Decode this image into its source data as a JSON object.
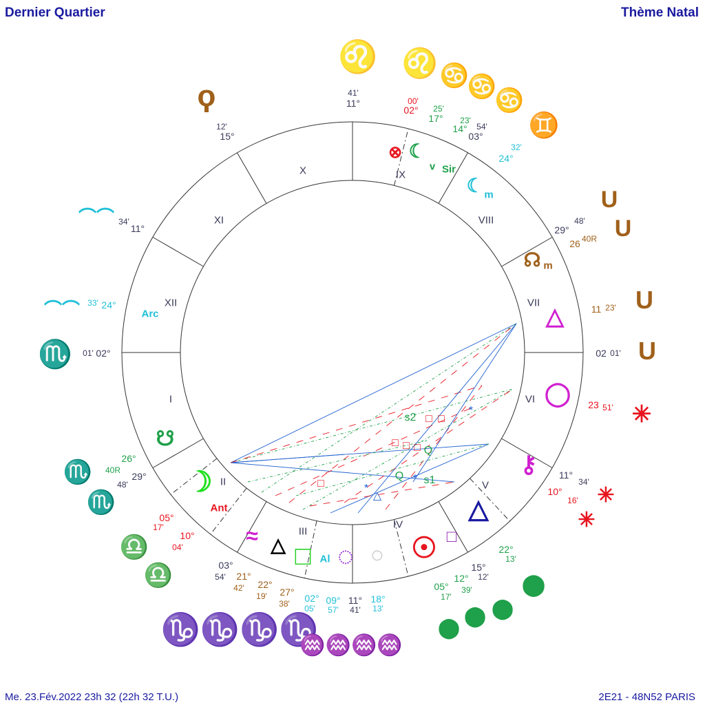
{
  "header": {
    "left": "Dernier Quartier",
    "right": "Thème Natal"
  },
  "footer": {
    "left": "Me. 23.Fév.2022 23h 32 (22h 32 T.U.)",
    "right": "2E21 - 48N52  PARIS"
  },
  "colors": {
    "title": "#1a1aa0",
    "ring": "#333333",
    "red": "#e8141e",
    "green": "#1fa04a",
    "cyan": "#20c0d8",
    "brown": "#a0601a",
    "gray": "#3a3a5a",
    "magenta": "#d020d0",
    "blue": "#2060d0"
  },
  "houses": [
    "X",
    "XI",
    "XII",
    "I",
    "II",
    "III",
    "IV",
    "V",
    "VI",
    "VII",
    "VIII",
    "IX"
  ],
  "degree_labels": [
    {
      "deg": "11°",
      "min": "41'",
      "color": "#3a3a5a"
    },
    {
      "deg": "02°",
      "min": "00'",
      "color": "#e8141e"
    },
    {
      "deg": "17°",
      "min": "25'",
      "color": "#1fa04a"
    },
    {
      "deg": "14°",
      "min": "23'",
      "color": "#1fa04a"
    },
    {
      "deg": "03°",
      "min": "54'",
      "color": "#3a3a5a"
    },
    {
      "deg": "24°",
      "min": "32'",
      "color": "#20c0d8"
    },
    {
      "deg": "15°",
      "min": "12'",
      "color": "#3a3a5a"
    },
    {
      "deg": "11°",
      "min": "34'",
      "color": "#3a3a5a"
    },
    {
      "deg": "24°",
      "min": "33'",
      "color": "#20c0d8"
    },
    {
      "deg": "02°",
      "min": "01'",
      "color": "#3a3a5a"
    },
    {
      "deg": "29°",
      "min": "48'",
      "color": "#3a3a5a"
    },
    {
      "deg": "26",
      "min": "40R",
      "color": "#a0601a"
    },
    {
      "deg": "11",
      "min": "23'",
      "color": "#a0601a"
    },
    {
      "deg": "02",
      "min": "01'",
      "color": "#3a3a5a"
    },
    {
      "deg": "23",
      "min": "51'",
      "color": "#e8141e"
    },
    {
      "deg": "11°",
      "min": "34'",
      "color": "#3a3a5a"
    },
    {
      "deg": "10°",
      "min": "16'",
      "color": "#e8141e"
    },
    {
      "deg": "22°",
      "min": "13'",
      "color": "#1fa04a"
    },
    {
      "deg": "15°",
      "min": "12'",
      "color": "#3a3a5a"
    },
    {
      "deg": "12°",
      "min": "39'",
      "color": "#1fa04a"
    },
    {
      "deg": "05°",
      "min": "17'",
      "color": "#1fa04a"
    },
    {
      "deg": "26°",
      "min": "40R",
      "color": "#1fa04a"
    },
    {
      "deg": "29°",
      "min": "48'",
      "color": "#3a3a5a"
    },
    {
      "deg": "05°",
      "min": "17'",
      "color": "#e8141e"
    },
    {
      "deg": "10°",
      "min": "04'",
      "color": "#e8141e"
    },
    {
      "deg": "03°",
      "min": "54'",
      "color": "#3a3a5a"
    },
    {
      "deg": "21°",
      "min": "42'",
      "color": "#a0601a"
    },
    {
      "deg": "22°",
      "min": "19'",
      "color": "#a0601a"
    },
    {
      "deg": "27°",
      "min": "38'",
      "color": "#a0601a"
    },
    {
      "deg": "02°",
      "min": "05'",
      "color": "#20c0d8"
    },
    {
      "deg": "09°",
      "min": "57'",
      "color": "#20c0d8"
    },
    {
      "deg": "11°",
      "min": "41'",
      "color": "#3a3a5a"
    },
    {
      "deg": "18°",
      "min": "13'",
      "color": "#20c0d8"
    }
  ],
  "sign_glyphs": [
    {
      "icon": "leo-icon",
      "char": "♌",
      "color": "#e8141e"
    },
    {
      "icon": "leo-icon",
      "char": "♌",
      "color": "#e8141e"
    },
    {
      "icon": "cancer-icon",
      "char": "♋",
      "color": "#1fa04a"
    },
    {
      "icon": "cancer-icon",
      "char": "♋",
      "color": "#1fa04a"
    },
    {
      "icon": "cancer-icon",
      "char": "♋",
      "color": "#1fa04a"
    },
    {
      "icon": "gemini-icon",
      "char": "♊",
      "color": "#20c0d8"
    },
    {
      "icon": "virgo-icon",
      "char": "ϙ",
      "color": "#a0601a"
    },
    {
      "icon": "aquarius-wave-icon",
      "char": "︵︵",
      "color": "#20c0d8"
    },
    {
      "icon": "aquarius-wave-icon",
      "char": "︵︵",
      "color": "#20c0d8"
    },
    {
      "icon": "scorpio-icon",
      "char": "♏",
      "color": "#1fa04a"
    },
    {
      "icon": "scorpio-icon",
      "char": "♏",
      "color": "#1fa04a"
    },
    {
      "icon": "scorpio-icon",
      "char": "♏",
      "color": "#1fa04a"
    },
    {
      "icon": "libra-icon",
      "char": "♎",
      "color": "#e8141e"
    },
    {
      "icon": "libra-icon",
      "char": "♎",
      "color": "#e8141e"
    },
    {
      "icon": "capricorn-icon",
      "char": "♑♑♑♑",
      "color": "#a0601a"
    },
    {
      "icon": "aquarius-icon",
      "char": "♒♒♒♒",
      "color": "#20c0d8"
    },
    {
      "icon": "taurus-cup-icon",
      "char": "U",
      "color": "#a0601a"
    },
    {
      "icon": "taurus-cup-icon",
      "char": "U",
      "color": "#a0601a"
    },
    {
      "icon": "taurus-cup-icon",
      "char": "U",
      "color": "#a0601a"
    },
    {
      "icon": "taurus-cup-icon",
      "char": "U",
      "color": "#a0601a"
    },
    {
      "icon": "spark-icon",
      "char": "✳",
      "color": "#e8141e"
    },
    {
      "icon": "spark-icon",
      "char": "✳",
      "color": "#e8141e"
    },
    {
      "icon": "spark-icon",
      "char": "✳",
      "color": "#e8141e"
    },
    {
      "icon": "drop-icon",
      "char": "⬤",
      "color": "#1fa04a"
    },
    {
      "icon": "drop-icon",
      "char": "⬤",
      "color": "#1fa04a"
    },
    {
      "icon": "drop-icon",
      "char": "⬤",
      "color": "#1fa04a"
    },
    {
      "icon": "drop-icon",
      "char": "⬤",
      "color": "#1fa04a"
    }
  ],
  "planet_glyphs": [
    {
      "icon": "part-of-fortune-icon",
      "char": "⊗",
      "color": "#e8141e"
    },
    {
      "icon": "moon-icon",
      "char": "☾",
      "color": "#1fa04a"
    },
    {
      "icon": "moon-icon",
      "char": "☾",
      "color": "#20c0d8"
    },
    {
      "icon": "node-icon",
      "char": "☊",
      "color": "#a0601a"
    },
    {
      "icon": "triangle-icon",
      "char": "△",
      "color": "#d020d0"
    },
    {
      "icon": "circle-icon",
      "char": "◯",
      "color": "#d020d0"
    },
    {
      "icon": "chiron-icon",
      "char": "⚷",
      "color": "#d020d0"
    },
    {
      "icon": "triangle-wave-icon",
      "char": "△",
      "color": "#1a1aa0"
    },
    {
      "icon": "sun-icon",
      "char": "☉",
      "color": "#e8141e"
    },
    {
      "icon": "square-icon",
      "char": "□",
      "color": "#9020b0"
    },
    {
      "icon": "dotted-circle-icon",
      "char": "◌",
      "color": "#9020d0"
    },
    {
      "icon": "faded-circle-icon",
      "char": "○",
      "color": "#cccccc"
    },
    {
      "icon": "square-icon",
      "char": "□",
      "color": "#20d020"
    },
    {
      "icon": "wave-circle-icon",
      "char": "≈",
      "color": "#d020d0"
    },
    {
      "icon": "triangle-circle-icon",
      "char": "△",
      "color": "#000000"
    },
    {
      "icon": "moon-crescent-icon",
      "char": "☽",
      "color": "#20e020"
    },
    {
      "icon": "south-node-icon",
      "char": "☋",
      "color": "#1fa04a"
    }
  ],
  "star_labels": [
    {
      "text": "Sir",
      "color": "#1fa04a"
    },
    {
      "text": "m",
      "color": "#20c0d8"
    },
    {
      "text": "m",
      "color": "#a0601a"
    },
    {
      "text": "Ant",
      "color": "#e8141e"
    },
    {
      "text": "Arc",
      "color": "#20c0d8"
    },
    {
      "text": "Al",
      "color": "#20c0d8"
    },
    {
      "text": "v",
      "color": "#1fa04a"
    }
  ],
  "aspect_labels": [
    {
      "text": "s2",
      "color": "#1fa04a"
    },
    {
      "text": "s1",
      "color": "#1fa04a"
    },
    {
      "text": "Q",
      "color": "#1fa04a"
    },
    {
      "text": "Q",
      "color": "#1fa04a"
    },
    {
      "text": "□",
      "color": "#e8141e"
    },
    {
      "text": "□",
      "color": "#e8141e"
    },
    {
      "text": "□",
      "color": "#e8141e"
    },
    {
      "text": "□",
      "color": "#e8141e"
    },
    {
      "text": "□",
      "color": "#e8141e"
    },
    {
      "text": "□",
      "color": "#e8141e"
    },
    {
      "text": "*",
      "color": "#2060d0"
    },
    {
      "text": "*",
      "color": "#2060d0"
    },
    {
      "text": "*",
      "color": "#2060d0"
    },
    {
      "text": "△",
      "color": "#2060d0"
    }
  ]
}
